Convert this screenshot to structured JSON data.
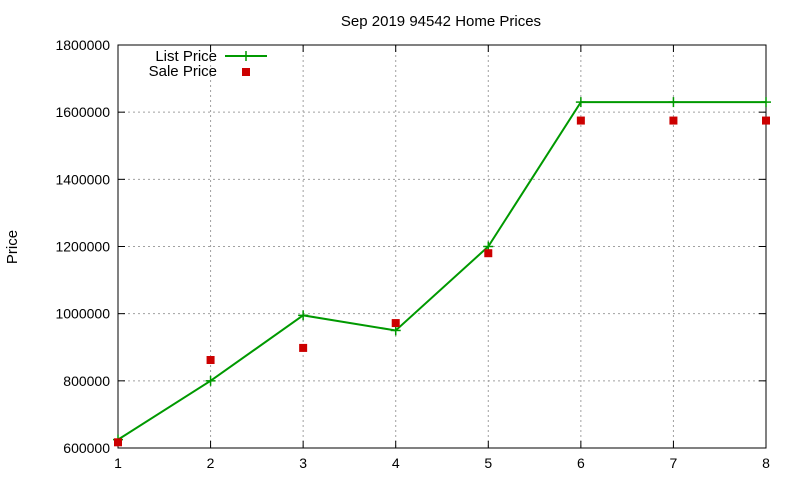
{
  "chart_data": {
    "type": "line",
    "title": "Sep 2019 94542 Home Prices",
    "xlabel": "",
    "ylabel": "Price",
    "xlim": [
      1,
      8
    ],
    "ylim": [
      600000,
      1800000
    ],
    "xticks": [
      "1",
      "2",
      "3",
      "4",
      "5",
      "6",
      "7",
      "8"
    ],
    "yticks": [
      "600000",
      "800000",
      "1000000",
      "1200000",
      "1400000",
      "1600000",
      "1800000"
    ],
    "grid": true,
    "legend_position": "top-left",
    "x": [
      1,
      2,
      3,
      4,
      5,
      6,
      7,
      8
    ],
    "series": [
      {
        "name": "List Price",
        "style": "line-with-plus-markers",
        "color": "#009900",
        "values": [
          625000,
          800000,
          995000,
          950000,
          1200000,
          1630000,
          1630000,
          1630000
        ]
      },
      {
        "name": "Sale Price",
        "style": "square-markers",
        "color": "#cc0000",
        "values": [
          617000,
          862000,
          898000,
          972000,
          1180000,
          1575000,
          1575000,
          1575000
        ]
      }
    ]
  }
}
